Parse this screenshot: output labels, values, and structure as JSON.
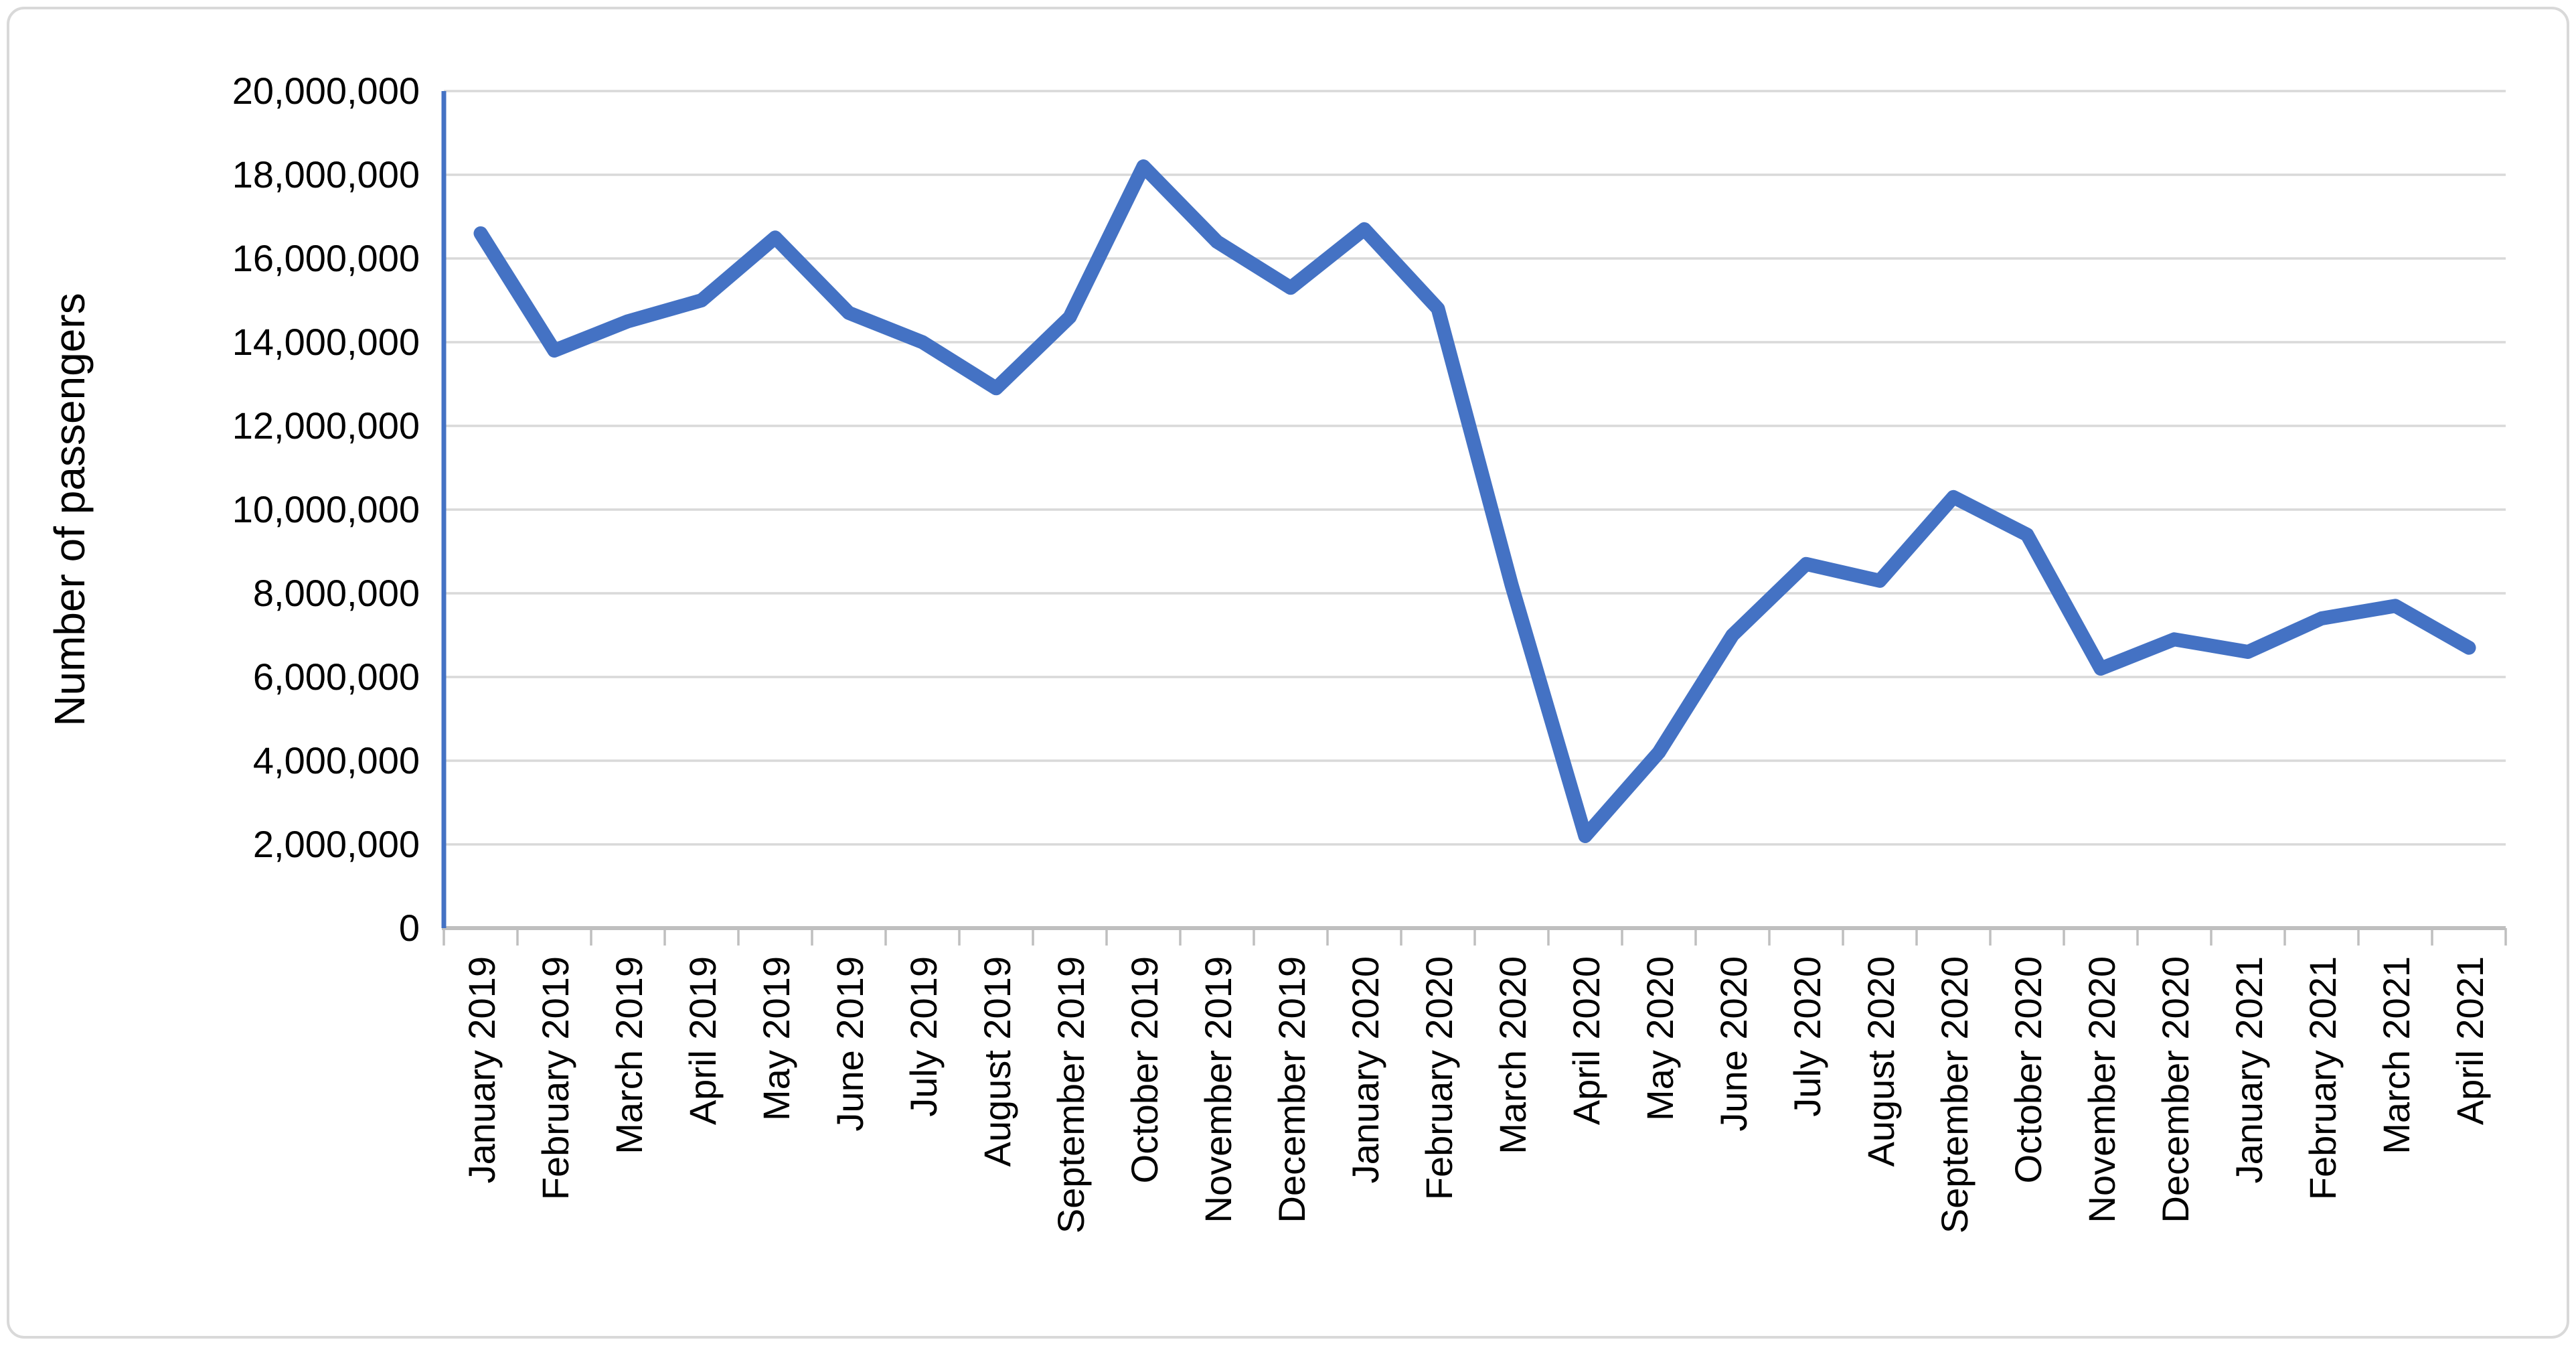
{
  "chart_data": {
    "type": "line",
    "title": "",
    "xlabel": "",
    "ylabel": "Number of passengers",
    "ylim": [
      0,
      20000000
    ],
    "ytick_step": 2000000,
    "ytick_labels": [
      "0",
      "2,000,000",
      "4,000,000",
      "6,000,000",
      "8,000,000",
      "10,000,000",
      "12,000,000",
      "14,000,000",
      "16,000,000",
      "18,000,000",
      "20,000,000"
    ],
    "grid": true,
    "legend_position": "none",
    "categories": [
      "January 2019",
      "February 2019",
      "March 2019",
      "April 2019",
      "May 2019",
      "June 2019",
      "July 2019",
      "August 2019",
      "September 2019",
      "October 2019",
      "November 2019",
      "December 2019",
      "January 2020",
      "February 2020",
      "March 2020",
      "April 2020",
      "May 2020",
      "June 2020",
      "July 2020",
      "August 2020",
      "September 2020",
      "October 2020",
      "November 2020",
      "December 2020",
      "January 2021",
      "February 2021",
      "March 2021",
      "April 2021"
    ],
    "series": [
      {
        "name": "Number of passengers",
        "values": [
          16600000,
          13800000,
          14500000,
          15000000,
          16500000,
          14700000,
          14000000,
          12900000,
          14600000,
          18200000,
          16400000,
          15300000,
          16700000,
          14800000,
          8200000,
          2200000,
          4200000,
          7000000,
          8700000,
          8300000,
          10300000,
          9400000,
          6200000,
          6900000,
          6600000,
          7400000,
          7700000,
          6700000
        ]
      }
    ],
    "colors": {
      "line": "#4472C4",
      "y_axis_line": "#4472C4",
      "gridline": "#D9D9D9",
      "x_axis_line": "#BFBFBF",
      "text": "#000000"
    }
  }
}
